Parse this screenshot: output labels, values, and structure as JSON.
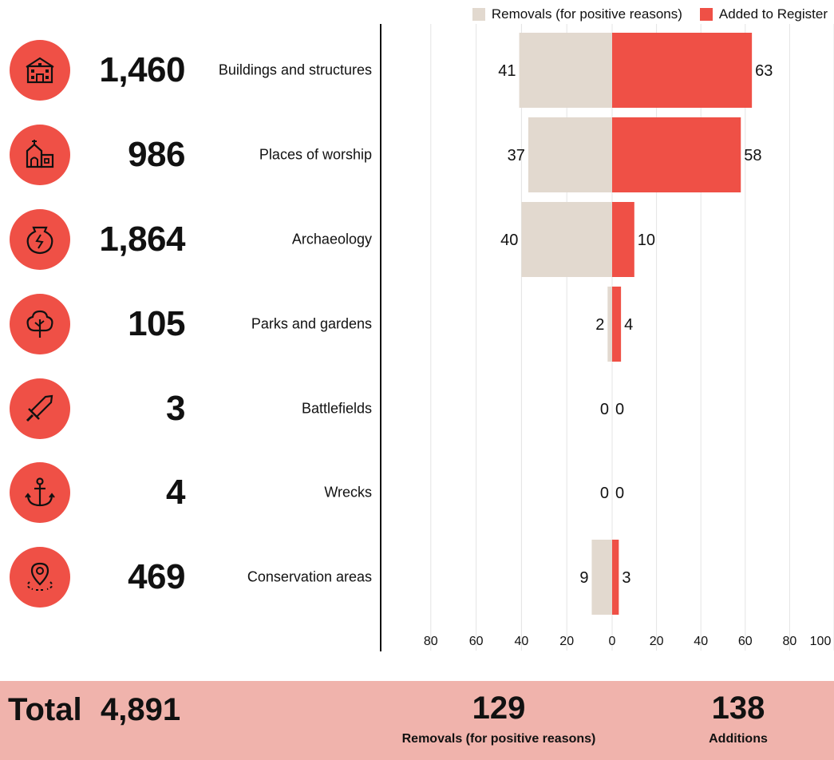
{
  "legend": {
    "removals_label": "Removals (for positive reasons)",
    "added_label": "Added to Register"
  },
  "colors": {
    "removals": "#e2d9cf",
    "added": "#ef5046",
    "icon_circle": "#ef5046",
    "footer_bg": "#f0b3ac",
    "grid": "#e4e4e4"
  },
  "rows": [
    {
      "count": "1,460",
      "label": "Buildings and structures",
      "icon": "building-icon"
    },
    {
      "count": "986",
      "label": "Places of worship",
      "icon": "church-icon"
    },
    {
      "count": "1,864",
      "label": "Archaeology",
      "icon": "urn-icon"
    },
    {
      "count": "105",
      "label": "Parks and gardens",
      "icon": "tree-icon"
    },
    {
      "count": "3",
      "label": "Battlefields",
      "icon": "sword-icon"
    },
    {
      "count": "4",
      "label": "Wrecks",
      "icon": "anchor-icon"
    },
    {
      "count": "469",
      "label": "Conservation areas",
      "icon": "map-pin-icon"
    }
  ],
  "chart_data": {
    "type": "bar",
    "orientation": "horizontal-diverging",
    "categories": [
      "Buildings and structures",
      "Places of worship",
      "Archaeology",
      "Parks and gardens",
      "Battlefields",
      "Wrecks",
      "Conservation areas"
    ],
    "series": [
      {
        "name": "Removals (for positive reasons)",
        "values": [
          41,
          37,
          40,
          2,
          0,
          0,
          9
        ]
      },
      {
        "name": "Added to Register",
        "values": [
          63,
          58,
          10,
          4,
          0,
          0,
          3
        ]
      }
    ],
    "xticks_left": [
      "80",
      "60",
      "40",
      "20",
      "0"
    ],
    "xticks_right": [
      "20",
      "40",
      "60",
      "80",
      "100"
    ],
    "xlim_left": [
      0,
      100
    ],
    "xlim_right": [
      0,
      100
    ],
    "grid": true,
    "legend_position": "top-right"
  },
  "footer": {
    "total_label": "Total",
    "total_value": "4,891",
    "removals_value": "129",
    "removals_label": "Removals (for positive reasons)",
    "additions_value": "138",
    "additions_label": "Additions"
  }
}
